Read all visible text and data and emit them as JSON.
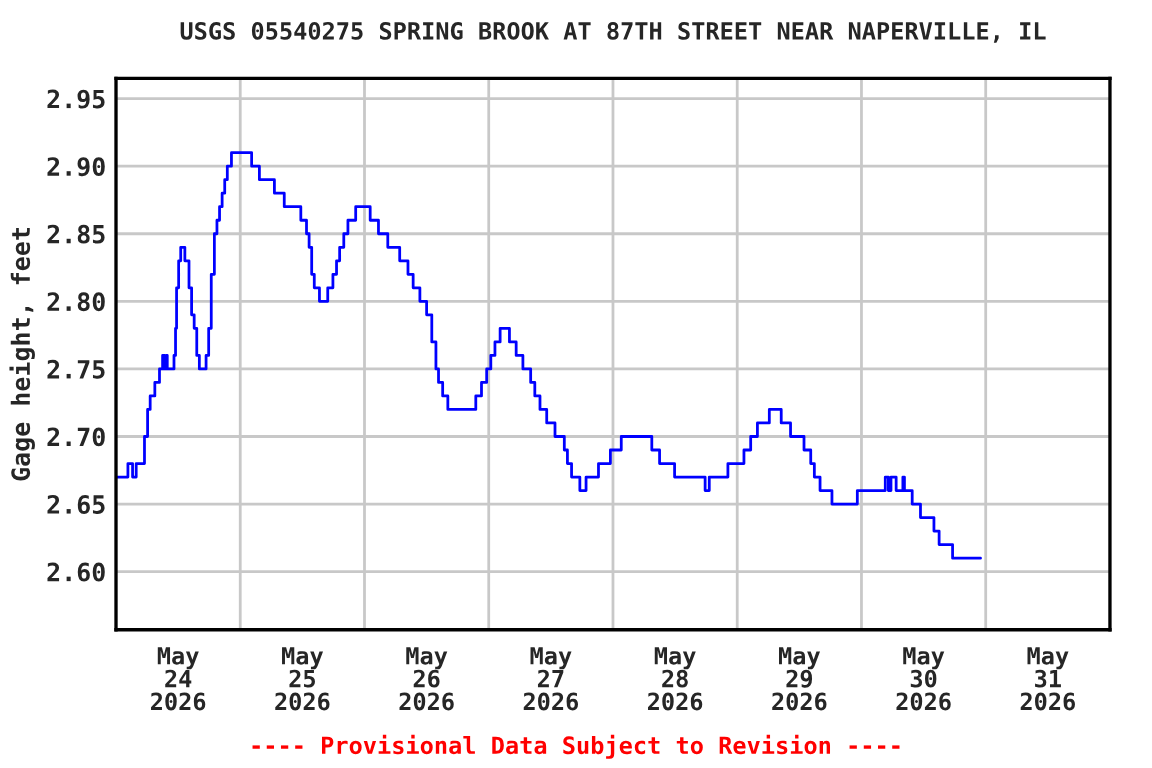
{
  "chart_data": {
    "type": "step",
    "title": "USGS 05540275 SPRING BROOK AT 87TH STREET NEAR NAPERVILLE, IL",
    "ylabel": "Gage height, feet",
    "annotations": [
      "---- Provisional Data Subject to Revision ----"
    ],
    "x": [
      "2026-05-24T00:00",
      "2026-05-24T02:18",
      "2026-05-24T03:12",
      "2026-05-24T03:54",
      "2026-05-24T05:30",
      "2026-05-24T06:06",
      "2026-05-24T06:36",
      "2026-05-24T07:30",
      "2026-05-24T08:24",
      "2026-05-24T09:00",
      "2026-05-24T09:24",
      "2026-05-24T09:42",
      "2026-05-24T09:54",
      "2026-05-24T11:12",
      "2026-05-24T11:30",
      "2026-05-24T11:42",
      "2026-05-24T12:06",
      "2026-05-24T12:30",
      "2026-05-24T13:18",
      "2026-05-24T14:06",
      "2026-05-24T14:36",
      "2026-05-24T15:06",
      "2026-05-24T15:36",
      "2026-05-24T16:06",
      "2026-05-24T17:24",
      "2026-05-24T17:54",
      "2026-05-24T18:24",
      "2026-05-24T19:00",
      "2026-05-24T19:30",
      "2026-05-24T20:00",
      "2026-05-24T20:30",
      "2026-05-24T21:00",
      "2026-05-24T21:30",
      "2026-05-24T22:18",
      "2026-05-25T02:12",
      "2026-05-25T03:42",
      "2026-05-25T06:36",
      "2026-05-25T08:30",
      "2026-05-25T11:42",
      "2026-05-25T12:48",
      "2026-05-25T13:18",
      "2026-05-25T13:48",
      "2026-05-25T14:18",
      "2026-05-25T15:18",
      "2026-05-25T16:54",
      "2026-05-25T17:54",
      "2026-05-25T18:36",
      "2026-05-25T19:12",
      "2026-05-25T20:00",
      "2026-05-25T20:48",
      "2026-05-25T22:18",
      "2026-05-26T01:06",
      "2026-05-26T02:42",
      "2026-05-26T04:30",
      "2026-05-26T06:48",
      "2026-05-26T08:24",
      "2026-05-26T09:24",
      "2026-05-26T10:42",
      "2026-05-26T12:00",
      "2026-05-26T13:00",
      "2026-05-26T13:48",
      "2026-05-26T14:18",
      "2026-05-26T15:06",
      "2026-05-26T16:06",
      "2026-05-26T21:30",
      "2026-05-26T22:36",
      "2026-05-26T23:36",
      "2026-05-27T00:24",
      "2026-05-27T01:12",
      "2026-05-27T02:12",
      "2026-05-27T04:00",
      "2026-05-27T05:18",
      "2026-05-27T06:36",
      "2026-05-27T08:06",
      "2026-05-27T08:54",
      "2026-05-27T09:54",
      "2026-05-27T11:12",
      "2026-05-27T12:48",
      "2026-05-27T14:36",
      "2026-05-27T15:12",
      "2026-05-27T16:00",
      "2026-05-27T17:36",
      "2026-05-27T18:48",
      "2026-05-27T21:12",
      "2026-05-27T23:30",
      "2026-05-28T01:36",
      "2026-05-28T07:30",
      "2026-05-28T09:00",
      "2026-05-28T11:54",
      "2026-05-28T17:48",
      "2026-05-28T18:36",
      "2026-05-28T22:12",
      "2026-05-29T01:18",
      "2026-05-29T02:36",
      "2026-05-29T03:54",
      "2026-05-29T06:12",
      "2026-05-29T08:30",
      "2026-05-29T10:18",
      "2026-05-29T12:54",
      "2026-05-29T14:12",
      "2026-05-29T14:54",
      "2026-05-29T16:00",
      "2026-05-29T18:18",
      "2026-05-29T23:12",
      "2026-05-30T04:36",
      "2026-05-30T05:12",
      "2026-05-30T05:42",
      "2026-05-30T06:42",
      "2026-05-30T08:00",
      "2026-05-30T08:18",
      "2026-05-30T09:48",
      "2026-05-30T11:24",
      "2026-05-30T14:00",
      "2026-05-30T15:00",
      "2026-05-30T17:36",
      "2026-05-30T23:00"
    ],
    "series": [
      {
        "color": "#0000ff",
        "values": [
          2.67,
          2.68,
          2.67,
          2.68,
          2.7,
          2.72,
          2.73,
          2.74,
          2.75,
          2.76,
          2.75,
          2.76,
          2.75,
          2.76,
          2.78,
          2.81,
          2.83,
          2.84,
          2.83,
          2.81,
          2.79,
          2.78,
          2.76,
          2.75,
          2.76,
          2.78,
          2.82,
          2.85,
          2.86,
          2.87,
          2.88,
          2.89,
          2.9,
          2.91,
          2.9,
          2.89,
          2.88,
          2.87,
          2.86,
          2.85,
          2.84,
          2.82,
          2.81,
          2.8,
          2.81,
          2.82,
          2.83,
          2.84,
          2.85,
          2.86,
          2.87,
          2.86,
          2.85,
          2.84,
          2.83,
          2.82,
          2.81,
          2.8,
          2.79,
          2.77,
          2.75,
          2.74,
          2.73,
          2.72,
          2.73,
          2.74,
          2.75,
          2.76,
          2.77,
          2.78,
          2.77,
          2.76,
          2.75,
          2.74,
          2.73,
          2.72,
          2.71,
          2.7,
          2.69,
          2.68,
          2.67,
          2.66,
          2.67,
          2.68,
          2.69,
          2.7,
          2.69,
          2.68,
          2.67,
          2.66,
          2.67,
          2.68,
          2.69,
          2.7,
          2.71,
          2.72,
          2.71,
          2.7,
          2.69,
          2.68,
          2.67,
          2.66,
          2.65,
          2.66,
          2.67,
          2.66,
          2.67,
          2.66,
          2.67,
          2.66,
          2.65,
          2.64,
          2.63,
          2.62,
          2.61,
          2.61
        ]
      }
    ],
    "xlim": [
      "2026-05-24T00:00",
      "2026-06-01T00:00"
    ],
    "xticks": [
      {
        "value": "2026-05-24T12:00",
        "label": "May\n24\n2026"
      },
      {
        "value": "2026-05-25T00:00",
        "label": null
      },
      {
        "value": "2026-05-25T12:00",
        "label": "May\n25\n2026"
      },
      {
        "value": "2026-05-26T00:00",
        "label": null
      },
      {
        "value": "2026-05-26T12:00",
        "label": "May\n26\n2026"
      },
      {
        "value": "2026-05-27T00:00",
        "label": null
      },
      {
        "value": "2026-05-27T12:00",
        "label": "May\n27\n2026"
      },
      {
        "value": "2026-05-28T00:00",
        "label": null
      },
      {
        "value": "2026-05-28T12:00",
        "label": "May\n28\n2026"
      },
      {
        "value": "2026-05-29T00:00",
        "label": null
      },
      {
        "value": "2026-05-29T12:00",
        "label": "May\n29\n2026"
      },
      {
        "value": "2026-05-30T00:00",
        "label": null
      },
      {
        "value": "2026-05-30T12:00",
        "label": "May\n30\n2026"
      },
      {
        "value": "2026-05-31T00:00",
        "label": null
      },
      {
        "value": "2026-05-31T12:00",
        "label": "May\n31\n2026"
      }
    ],
    "ylim": [
      2.557,
      2.965
    ],
    "yticks": [
      {
        "value": 2.6,
        "label": "2.60"
      },
      {
        "value": 2.65,
        "label": "2.65"
      },
      {
        "value": 2.7,
        "label": "2.70"
      },
      {
        "value": 2.75,
        "label": "2.75"
      },
      {
        "value": 2.8,
        "label": "2.80"
      },
      {
        "value": 2.85,
        "label": "2.85"
      },
      {
        "value": 2.9,
        "label": "2.90"
      },
      {
        "value": 2.95,
        "label": "2.95"
      }
    ],
    "grid": true
  }
}
